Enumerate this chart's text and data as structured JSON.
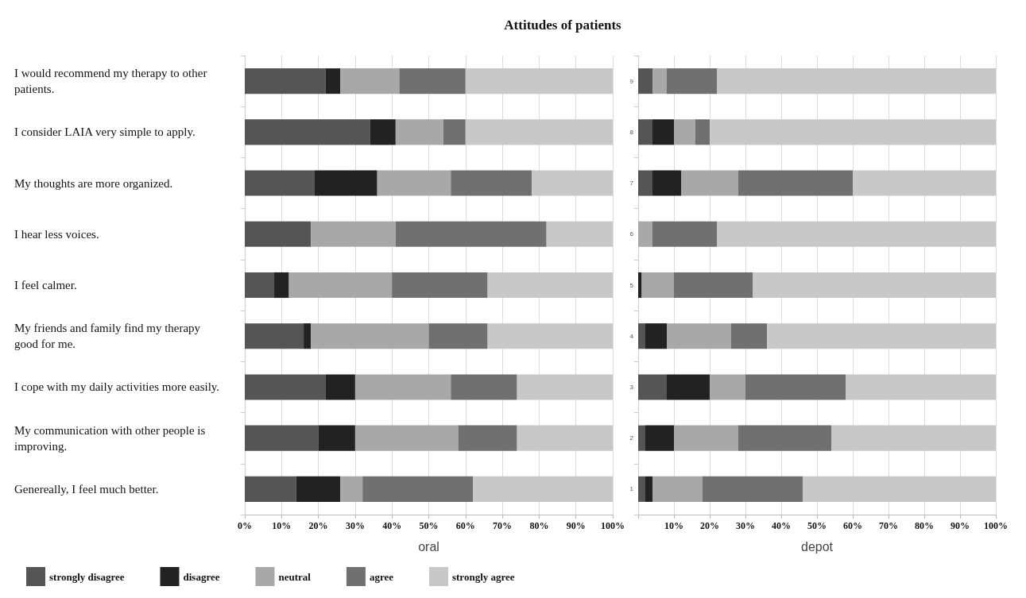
{
  "chart_data": [
    {
      "type": "bar",
      "orientation": "horizontal",
      "stacked": true,
      "title": "Attitudes of patients",
      "xlabel": "oral",
      "categories": [
        "I would recommend my therapy to other patients.",
        "I consider LAIA very simple to apply.",
        "My thoughts are more organized.",
        "I hear less voices.",
        "I feel calmer.",
        "My friends and family find my therapy good for me.",
        "I cope with my daily activities more easily.",
        "My communication with other people is improving.",
        "Genereally, I feel much better."
      ],
      "series": [
        {
          "name": "strongly disagree",
          "color": "#555555",
          "values": [
            22,
            34,
            19,
            18,
            8,
            16,
            22,
            20,
            14
          ]
        },
        {
          "name": "disagree",
          "color": "#222222",
          "values": [
            4,
            7,
            17,
            0,
            4,
            2,
            8,
            10,
            12
          ]
        },
        {
          "name": "neutral",
          "color": "#a8a8a8",
          "values": [
            16,
            13,
            20,
            23,
            28,
            32,
            26,
            28,
            6
          ]
        },
        {
          "name": "agree",
          "color": "#707070",
          "values": [
            18,
            6,
            22,
            41,
            26,
            16,
            18,
            16,
            30
          ]
        },
        {
          "name": "strongly agree",
          "color": "#c8c8c8",
          "values": [
            40,
            40,
            22,
            18,
            34,
            34,
            26,
            26,
            38
          ]
        }
      ],
      "xlim": [
        0,
        100
      ],
      "xticks": [
        {
          "value": 0,
          "label": "0%"
        },
        {
          "value": 10,
          "label": "10%"
        },
        {
          "value": 20,
          "label": "20%"
        },
        {
          "value": 30,
          "label": "30%"
        },
        {
          "value": 40,
          "label": "40%"
        },
        {
          "value": 50,
          "label": "50%"
        },
        {
          "value": 60,
          "label": "60%"
        },
        {
          "value": 70,
          "label": "70%"
        },
        {
          "value": 80,
          "label": "80%"
        },
        {
          "value": 90,
          "label": "90%"
        },
        {
          "value": 100,
          "label": "100%"
        }
      ],
      "grid": "x",
      "legend": "bottom"
    },
    {
      "type": "bar",
      "orientation": "horizontal",
      "stacked": true,
      "xlabel": "depot",
      "categories": [
        "9",
        "8",
        "7",
        "6",
        "5",
        "4",
        "3",
        "2",
        "1"
      ],
      "series": [
        {
          "color": "#555555",
          "values": [
            4,
            4,
            4,
            0,
            0,
            2,
            8,
            2,
            2
          ]
        },
        {
          "color": "#222222",
          "values": [
            0,
            6,
            8,
            0,
            1,
            6,
            12,
            8,
            2
          ]
        },
        {
          "color": "#a8a8a8",
          "values": [
            4,
            6,
            16,
            4,
            9,
            18,
            10,
            18,
            14
          ]
        },
        {
          "color": "#707070",
          "values": [
            14,
            4,
            32,
            18,
            22,
            10,
            28,
            26,
            28
          ]
        },
        {
          "color": "#c8c8c8",
          "values": [
            78,
            80,
            40,
            78,
            68,
            64,
            42,
            46,
            54
          ]
        }
      ],
      "xlim": [
        0,
        100
      ],
      "xticks": [
        {
          "value": 0,
          "label": null
        },
        {
          "value": 10,
          "label": "10%"
        },
        {
          "value": 20,
          "label": "20%"
        },
        {
          "value": 30,
          "label": "30%"
        },
        {
          "value": 40,
          "label": "40%"
        },
        {
          "value": 50,
          "label": "50%"
        },
        {
          "value": 60,
          "label": "60%"
        },
        {
          "value": 70,
          "label": "70%"
        },
        {
          "value": 80,
          "label": "80%"
        },
        {
          "value": 90,
          "label": "90%"
        },
        {
          "value": 100,
          "label": "100%"
        }
      ],
      "grid": "x",
      "legend": false
    }
  ]
}
